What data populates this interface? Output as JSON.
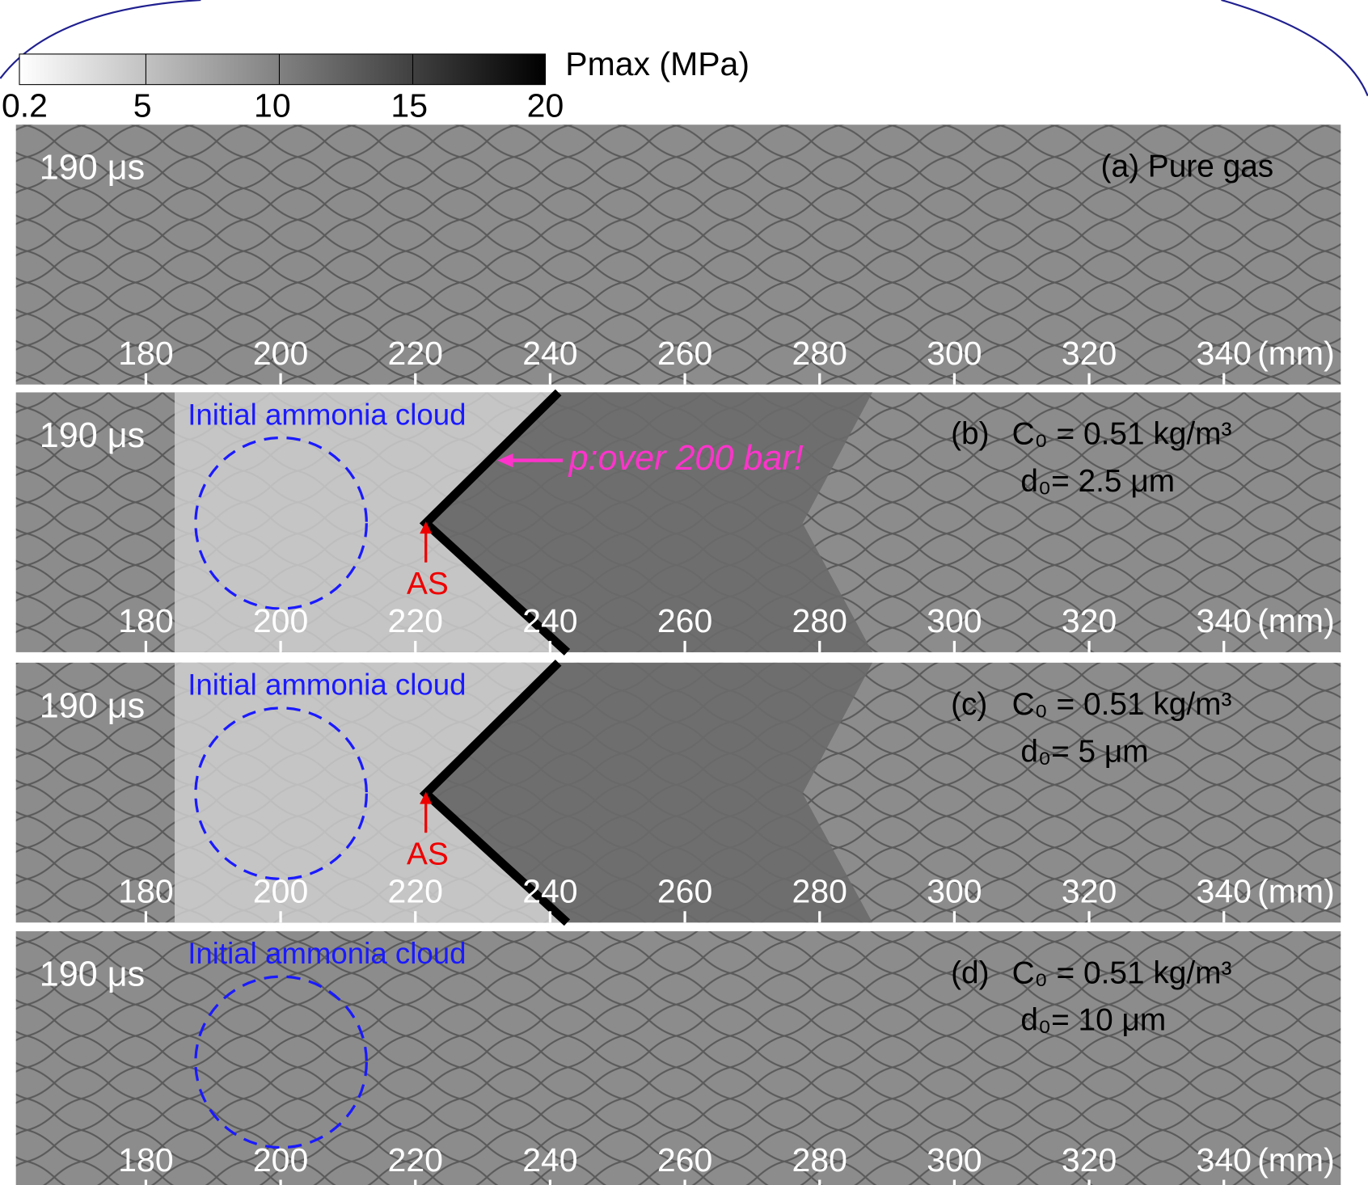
{
  "colorbar": {
    "label": "Pmax (MPa)",
    "ticks": [
      "0.2",
      "5",
      "10",
      "15",
      "20"
    ]
  },
  "panels": [
    {
      "time": "190 μs",
      "caption": "(a) Pure gas",
      "x_ticks": [
        "180",
        "200",
        "220",
        "240",
        "260",
        "280",
        "300",
        "320",
        "340"
      ],
      "unit": "(mm)"
    },
    {
      "time": "190 μs",
      "caption": "(b)",
      "concentration": "C₀ = 0.51 kg/m³",
      "diameter": "d₀= 2.5 μm",
      "cloud_label": "Initial ammonia cloud",
      "pressure_note": "p:over 200 bar!",
      "arrow_label": "AS",
      "x_ticks": [
        "180",
        "200",
        "220",
        "240",
        "260",
        "280",
        "300",
        "320",
        "340"
      ],
      "unit": "(mm)"
    },
    {
      "time": "190 μs",
      "caption": "(c)",
      "concentration": "C₀ = 0.51 kg/m³",
      "diameter": "d₀= 5 μm",
      "cloud_label": "Initial ammonia cloud",
      "arrow_label": "AS",
      "x_ticks": [
        "180",
        "200",
        "220",
        "240",
        "260",
        "280",
        "300",
        "320",
        "340"
      ],
      "unit": "(mm)"
    },
    {
      "time": "190 μs",
      "caption": "(d)",
      "concentration": "C₀ = 0.51 kg/m³",
      "diameter": "d₀= 10 μm",
      "cloud_label": "Initial ammonia cloud",
      "x_ticks": [
        "180",
        "200",
        "220",
        "240",
        "260",
        "280",
        "300",
        "320",
        "340"
      ],
      "unit": "(mm)"
    }
  ]
}
